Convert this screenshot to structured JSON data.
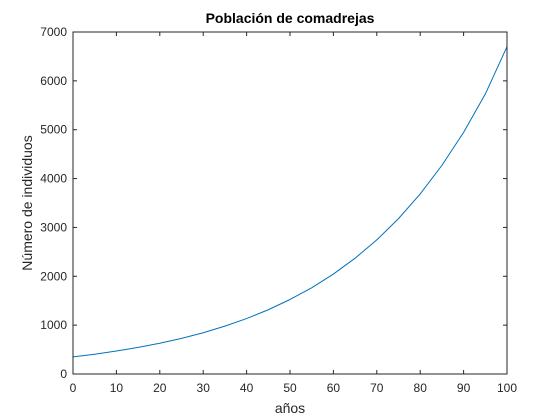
{
  "chart_data": {
    "type": "line",
    "title": "Población de comadrejas",
    "xlabel": "años",
    "ylabel": "Número de individuos",
    "xlim": [
      0,
      100
    ],
    "ylim": [
      0,
      7000
    ],
    "x_ticks": [
      0,
      10,
      20,
      30,
      40,
      50,
      60,
      70,
      80,
      90,
      100
    ],
    "y_ticks": [
      0,
      1000,
      2000,
      3000,
      4000,
      5000,
      6000,
      7000
    ],
    "x_tick_labels": [
      "0",
      "10",
      "20",
      "30",
      "40",
      "50",
      "60",
      "70",
      "80",
      "90",
      "100"
    ],
    "y_tick_labels": [
      "0",
      "1000",
      "2000",
      "3000",
      "4000",
      "5000",
      "6000",
      "7000"
    ],
    "grid": false,
    "series": [
      {
        "color": "#0072BD",
        "x": [
          0,
          5,
          10,
          15,
          20,
          25,
          30,
          35,
          40,
          45,
          50,
          55,
          60,
          65,
          70,
          75,
          80,
          85,
          90,
          95,
          100
        ],
        "y": [
          350,
          405,
          470,
          545,
          630,
          730,
          845,
          980,
          1135,
          1315,
          1525,
          1765,
          2045,
          2370,
          2745,
          3180,
          3685,
          4270,
          4945,
          5730,
          6700
        ]
      }
    ]
  }
}
